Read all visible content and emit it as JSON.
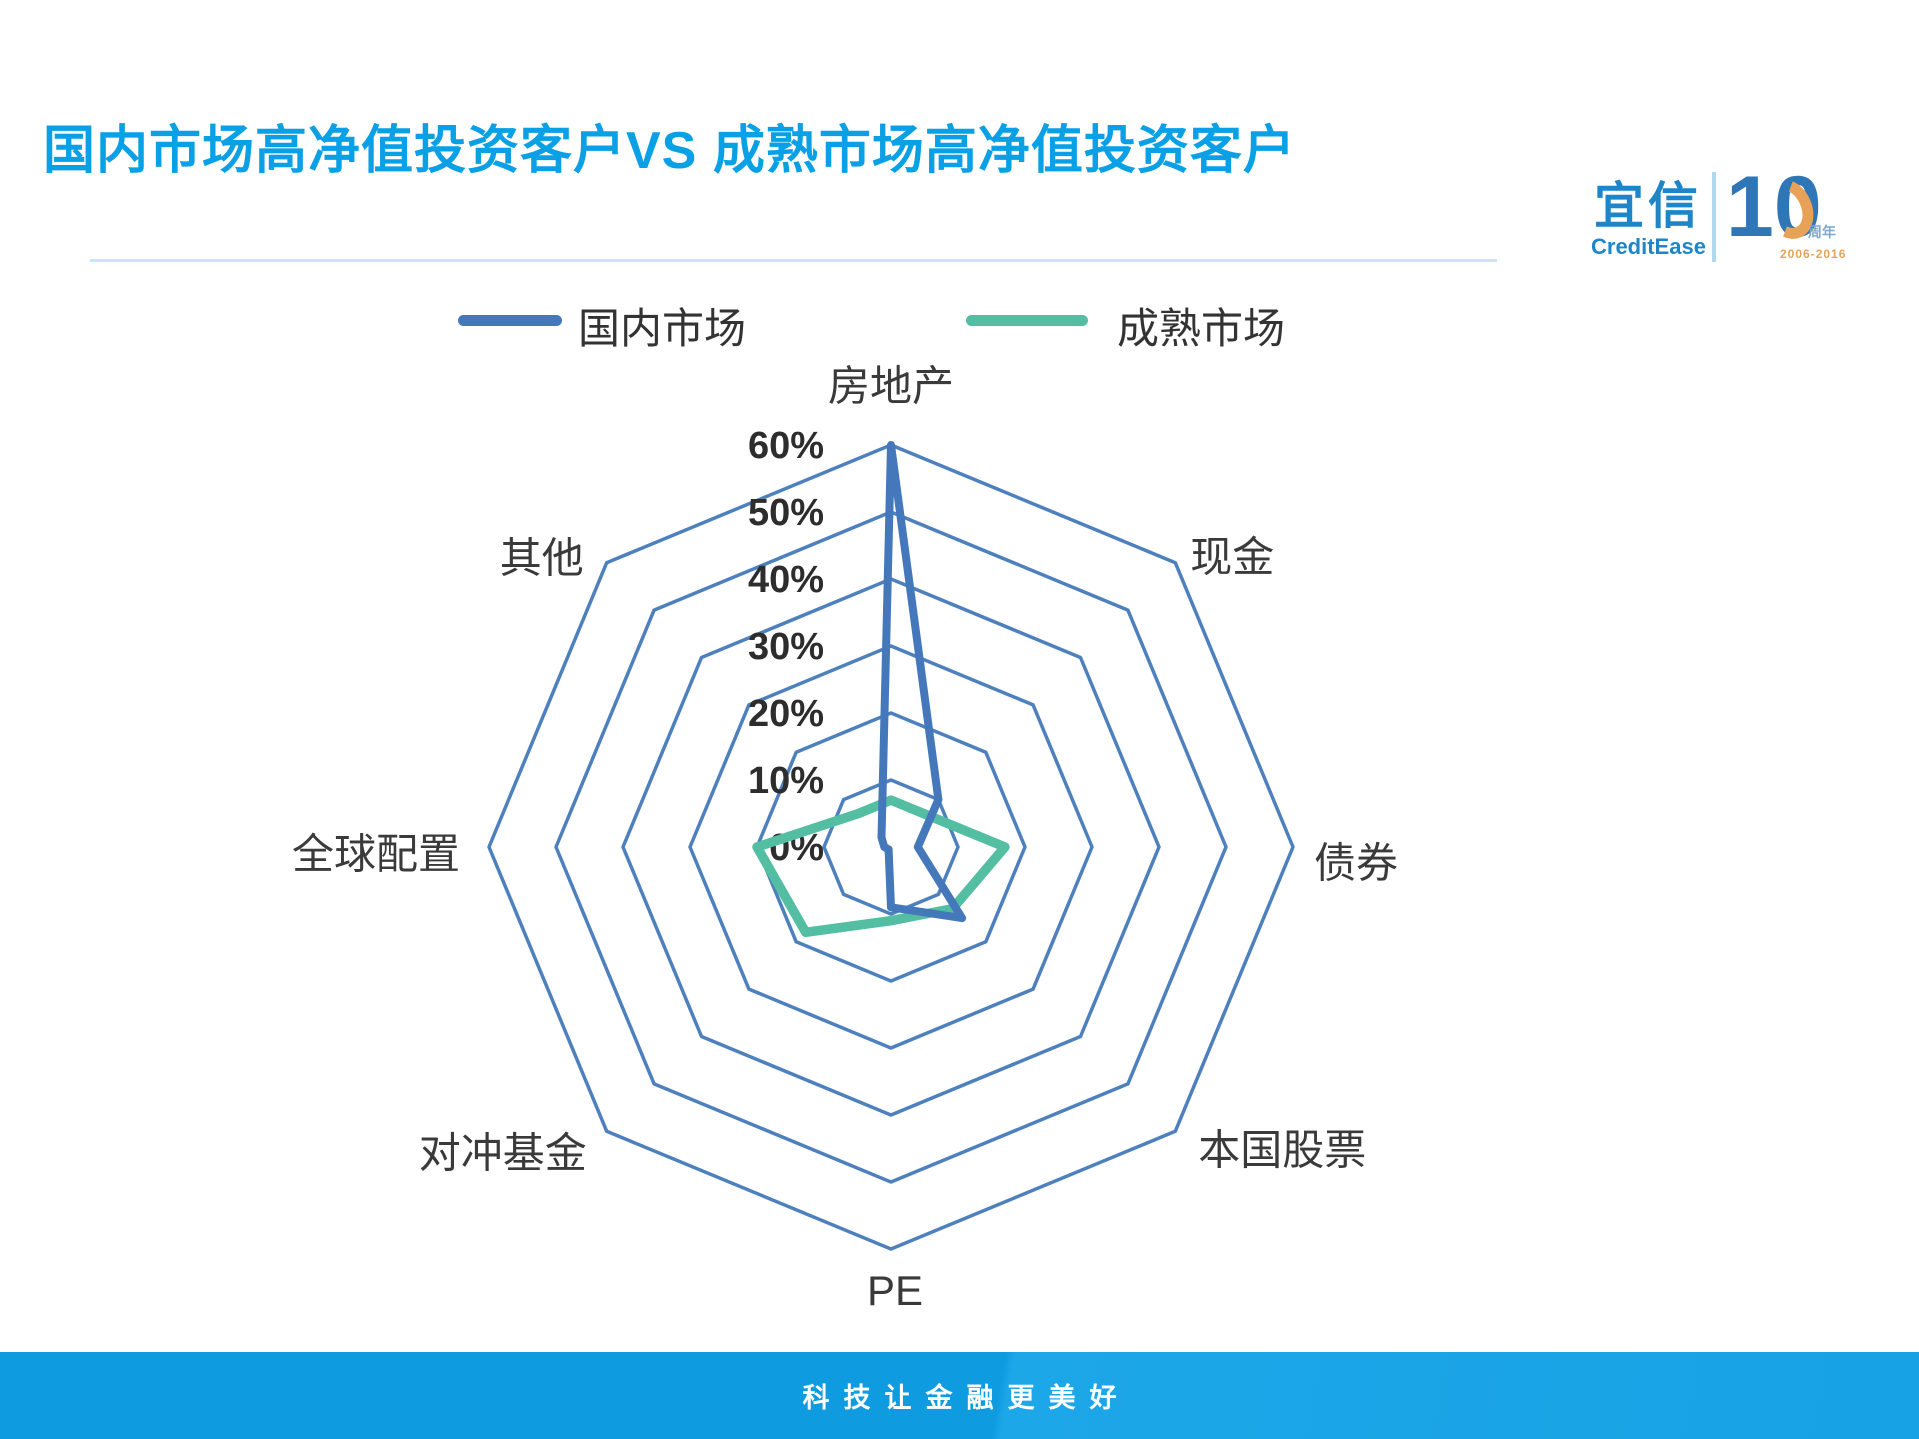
{
  "header": {
    "title": "国内市场高净值投资客户VS 成熟市场高净值投资客户"
  },
  "logo": {
    "cn": "宜信",
    "en": "CreditEase",
    "number": "10",
    "anniversary": "周年",
    "years": "2006-2016"
  },
  "footer": {
    "slogan": "科技让金融更美好"
  },
  "colors": {
    "title": "#0AA0E5",
    "grid": "#4E80BE",
    "tick_text": "#2D2D2D",
    "domestic_series": "#4478BB",
    "mature_series": "#54BEA2",
    "footer_bg": "#14A0E2",
    "logo_blue": "#1E86C8",
    "logo_orange": "#E7A257"
  },
  "chart_data": {
    "type": "radar",
    "title": "国内市场高净值投资客户VS 成熟市场高净值投资客户",
    "categories": [
      "房地产",
      "现金",
      "债券",
      "本国股票",
      "PE",
      "对冲基金",
      "全球配置",
      "其他"
    ],
    "series": [
      {
        "name": "国内市场",
        "color": "#4478BB",
        "values": [
          60,
          10,
          4,
          15,
          9,
          0.5,
          1,
          2
        ]
      },
      {
        "name": "成熟市场",
        "color": "#54BEA2",
        "values": [
          7,
          7,
          17,
          13,
          11,
          18,
          20,
          7
        ]
      }
    ],
    "max": 60,
    "rings_percent": [
      60,
      50,
      40,
      30,
      20,
      10
    ],
    "tick_labels": [
      "60%",
      "50%",
      "40%",
      "30%",
      "20%",
      "10%",
      "0%"
    ],
    "grid_shape": "octagon",
    "grid_on": true,
    "radial_spokes": false,
    "legend_position": "top",
    "units": "percent"
  }
}
